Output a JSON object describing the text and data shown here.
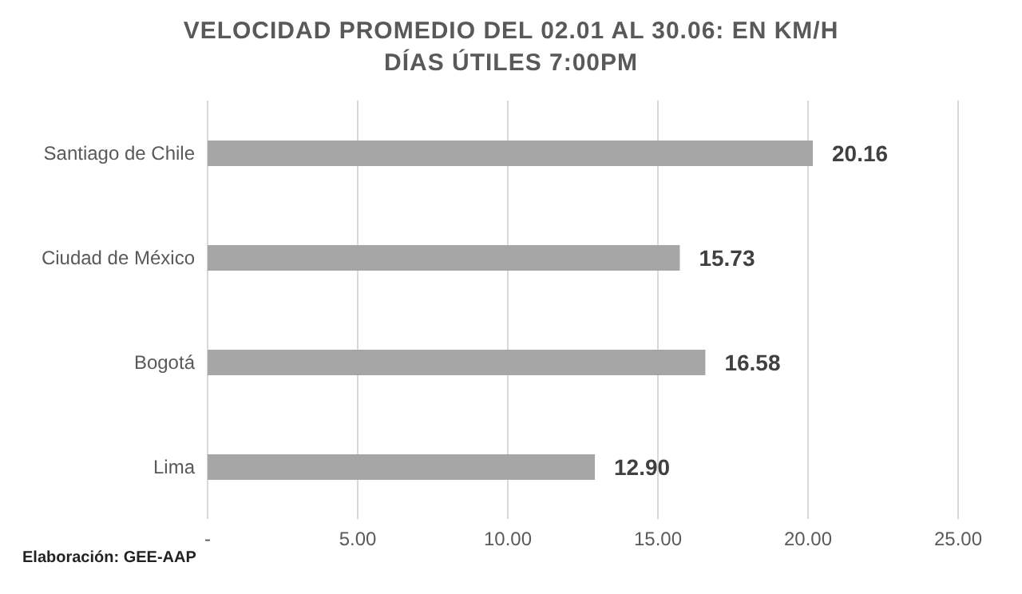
{
  "chart_data": {
    "type": "bar",
    "orientation": "horizontal",
    "title": "VELOCIDAD PROMEDIO DEL 02.01 AL 30.06: EN KM/H",
    "subtitle": "DÍAS ÚTILES 7:00PM",
    "categories": [
      "Santiago de Chile",
      "Ciudad de México",
      "Bogotá",
      "Lima"
    ],
    "values": [
      20.16,
      15.73,
      16.58,
      12.9
    ],
    "value_labels": [
      "20.16",
      "15.73",
      "16.58",
      "12.90"
    ],
    "color": "#a6a6a6",
    "xlim": [
      0,
      25
    ],
    "xticks": [
      {
        "value": 0,
        "label": "-"
      },
      {
        "value": 5,
        "label": "5.00"
      },
      {
        "value": 10,
        "label": "10.00"
      },
      {
        "value": 15,
        "label": "15.00"
      },
      {
        "value": 20,
        "label": "20.00"
      },
      {
        "value": 25,
        "label": "25.00"
      }
    ],
    "grid": "x",
    "annotations": [
      "Elaboración: GEE-AAP"
    ]
  }
}
